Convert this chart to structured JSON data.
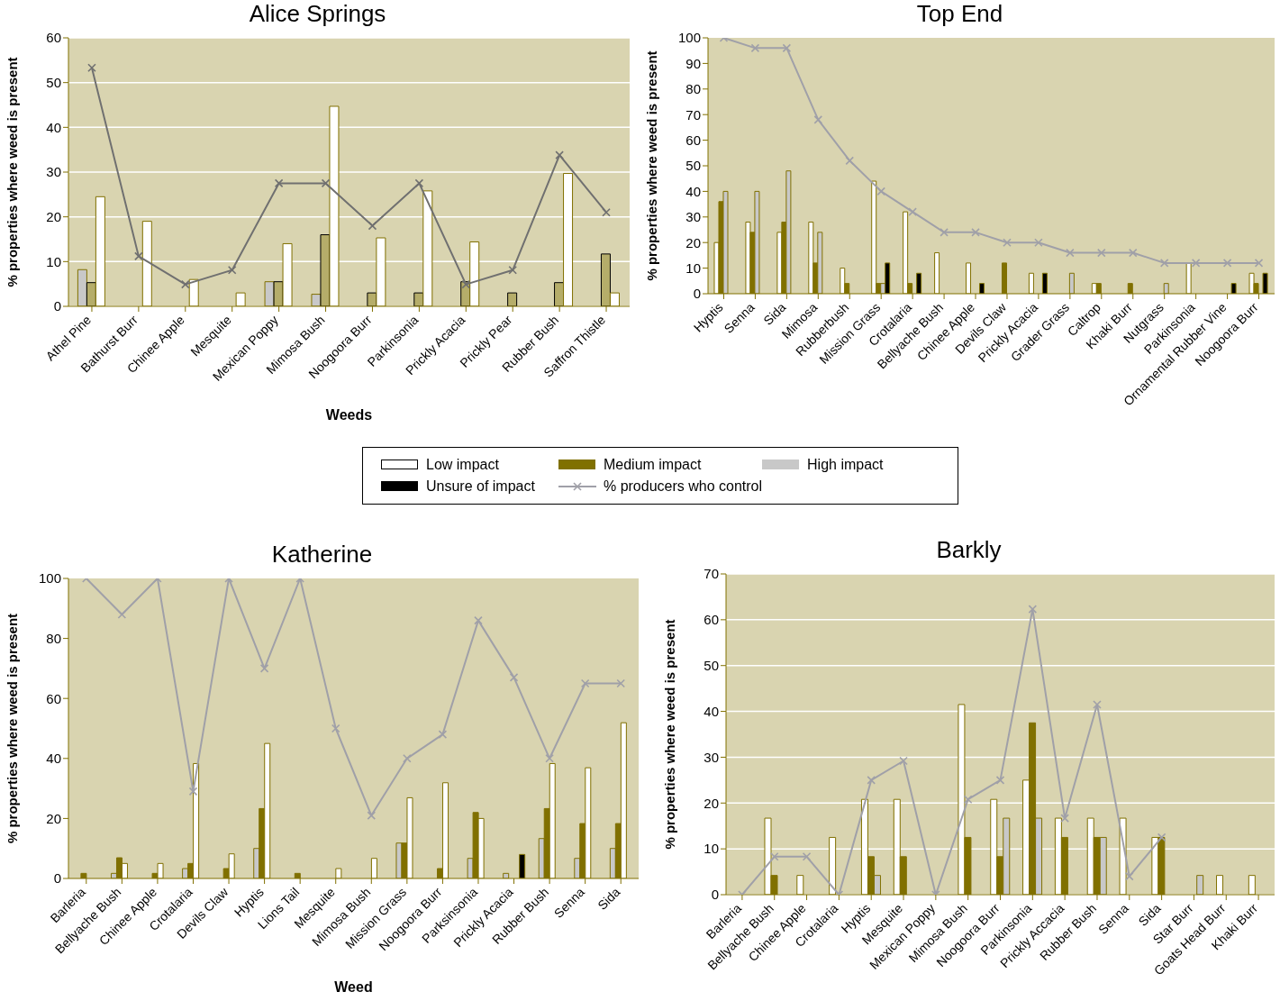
{
  "chart_data": [
    {
      "type": "bar",
      "title": "Alice Springs",
      "xlabel": "Weeds",
      "ylabel": "% properties where weed is present",
      "categories": [
        "Athel Pine",
        "Bathurst Burr",
        "Chinee Apple",
        "Mesquite",
        "Mexican Poppy",
        "Mimosa Bush",
        "Noogoora Burr",
        "Parkinsonia",
        "Prickly Acacia",
        "Prickly Pear",
        "Rubber Bush",
        "Saffron Thistle"
      ],
      "ylim": [
        0,
        60
      ],
      "yticks": [
        0,
        10,
        20,
        30,
        40,
        50,
        60
      ],
      "grid": "y",
      "marker": "cross",
      "series": [
        {
          "color": "#c8c8c8",
          "values": [
            8.2,
            null,
            null,
            null,
            5.5,
            2.7,
            null,
            null,
            null,
            null,
            null,
            null
          ]
        },
        {
          "color": "#b5ad6a",
          "values": [
            5.3,
            null,
            null,
            null,
            5.5,
            16,
            3,
            3,
            5.5,
            3,
            5.3,
            11.7
          ]
        },
        {
          "color": "#ffffff",
          "values": [
            24.5,
            19,
            6,
            3,
            14,
            44.7,
            15.3,
            25.8,
            14.4,
            null,
            29.7,
            3
          ]
        },
        {
          "type": "line",
          "color": "#707070",
          "values": [
            53.3,
            11.2,
            4.9,
            8.1,
            27.5,
            27.5,
            18,
            27.5,
            4.9,
            8.1,
            33.8,
            21
          ]
        }
      ]
    },
    {
      "type": "bar",
      "title": "Top End",
      "ylabel": "% properties where weed is present",
      "categories": [
        "Hyptis",
        "Senna",
        "Sida",
        "Mimosa",
        "Rubberbush",
        "Mission Grass",
        "Crotalaria",
        "Bellyache Bush",
        "Chinee Apple",
        "Devils Claw",
        "Prickly Acacia",
        "Grader Grass",
        "Caltrop",
        "Khaki Burr",
        "Nutgrass",
        "Parkinsonia",
        "Ornamental Rubber Vine",
        "Noogoora Burr"
      ],
      "ylim": [
        0,
        100
      ],
      "yticks": [
        0,
        10,
        20,
        30,
        40,
        50,
        60,
        70,
        80,
        90,
        100
      ],
      "legend": "bottom",
      "marker": "cross",
      "series": [
        {
          "name": "Low impact",
          "color": "#ffffff",
          "values": [
            20,
            28,
            24,
            28,
            10,
            44,
            32,
            16,
            12,
            null,
            8,
            null,
            4,
            null,
            null,
            12,
            null,
            8
          ]
        },
        {
          "name": "Medium impact",
          "color": "#807000",
          "values": [
            36,
            24,
            28,
            12,
            4,
            4,
            4,
            null,
            null,
            12,
            null,
            null,
            4,
            4,
            null,
            null,
            null,
            4
          ]
        },
        {
          "name": "High impact",
          "color": "#c8c8c8",
          "values": [
            40,
            40,
            48,
            24,
            null,
            4,
            null,
            null,
            null,
            null,
            null,
            8,
            null,
            null,
            4,
            null,
            null,
            null
          ]
        },
        {
          "name": "Unsure of impact",
          "color": "#000000",
          "values": [
            null,
            null,
            null,
            null,
            null,
            12,
            8,
            null,
            4,
            null,
            8,
            null,
            null,
            null,
            null,
            null,
            4,
            8
          ]
        },
        {
          "name": "% producers who control",
          "type": "line",
          "color": "#a0a0a8",
          "values": [
            100,
            96,
            96,
            68,
            52,
            40,
            32,
            24,
            24,
            20,
            20,
            16,
            16,
            16,
            12,
            12,
            12,
            12
          ]
        }
      ]
    },
    {
      "type": "bar",
      "title": "Katherine",
      "xlabel": "Weed",
      "ylabel": "% properties where weed is present",
      "categories": [
        "Barleria",
        "Bellyache Bush",
        "Chinee Apple",
        "Crotalaria",
        "Devils Claw",
        "Hyptis",
        "Lions Tail",
        "Mesquite",
        "Mimosa Bush",
        "Mission Grass",
        "Noogoora Burr",
        "Parksinsonia",
        "Prickly Acacia",
        "Rubber Bush",
        "Senna",
        "Sida"
      ],
      "ylim": [
        0,
        100
      ],
      "yticks": [
        0,
        20,
        40,
        60,
        80,
        100
      ],
      "marker": "cross",
      "series": [
        {
          "color": "#c8c8c8",
          "values": [
            null,
            1.7,
            null,
            3.3,
            null,
            10,
            null,
            null,
            null,
            11.8,
            null,
            6.7,
            1.7,
            13.3,
            6.7,
            10
          ]
        },
        {
          "color": "#807000",
          "values": [
            1.7,
            6.9,
            1.7,
            5,
            3.3,
            23.3,
            1.7,
            null,
            null,
            11.8,
            3.3,
            22,
            null,
            23.3,
            18.3,
            18.3
          ]
        },
        {
          "color": "#ffffff",
          "values": [
            null,
            5,
            5,
            38.3,
            8.2,
            45,
            null,
            3.3,
            6.7,
            26.9,
            31.9,
            20,
            null,
            38.3,
            36.9,
            51.9
          ]
        },
        {
          "color": "#000000",
          "values": [
            null,
            null,
            null,
            null,
            null,
            null,
            null,
            null,
            null,
            null,
            null,
            null,
            8,
            null,
            null,
            null
          ]
        },
        {
          "type": "line",
          "color": "#a0a0a8",
          "values": [
            100,
            88,
            100,
            29,
            100,
            70,
            100,
            50,
            21,
            40,
            48,
            86,
            67,
            40,
            65,
            65
          ]
        }
      ]
    },
    {
      "type": "bar",
      "title": "Barkly",
      "ylabel": "% properties where weed is present",
      "categories": [
        "Barleria",
        "Bellyache Bush",
        "Chinee Apple",
        "Crotalaria",
        "Hyptis",
        "Mesquite",
        "Mexican Poppy",
        "Mimosa Bush",
        "Noogoora Burr",
        "Parkinsonia",
        "Prickly Accacia",
        "Rubber Bush",
        "Senna",
        "Sida",
        "Star Burr",
        "Goats Head Burr",
        "Khaki Burr"
      ],
      "ylim": [
        0,
        70
      ],
      "yticks": [
        0,
        10,
        20,
        30,
        40,
        50,
        60,
        70
      ],
      "grid": "y",
      "marker": "cross",
      "series": [
        {
          "color": "#ffffff",
          "values": [
            null,
            16.7,
            4.2,
            12.5,
            20.8,
            20.8,
            null,
            41.5,
            20.8,
            25,
            16.7,
            16.7,
            16.7,
            12.5,
            null,
            4.2,
            4.2
          ]
        },
        {
          "color": "#807000",
          "values": [
            null,
            4.2,
            null,
            null,
            8.3,
            8.3,
            null,
            12.5,
            8.3,
            37.5,
            12.5,
            12.5,
            null,
            12.5,
            null,
            null,
            null
          ]
        },
        {
          "color": "#c8c8c8",
          "values": [
            null,
            null,
            null,
            null,
            4.2,
            null,
            null,
            null,
            16.7,
            16.7,
            null,
            12.5,
            null,
            null,
            4.2,
            null,
            null
          ]
        },
        {
          "type": "line",
          "color": "#a0a0a8",
          "values": [
            0,
            8.3,
            8.3,
            0,
            25,
            29.2,
            0,
            20.8,
            25,
            62.3,
            16.7,
            41.5,
            4,
            12.5,
            null,
            null,
            null
          ]
        }
      ]
    }
  ]
}
